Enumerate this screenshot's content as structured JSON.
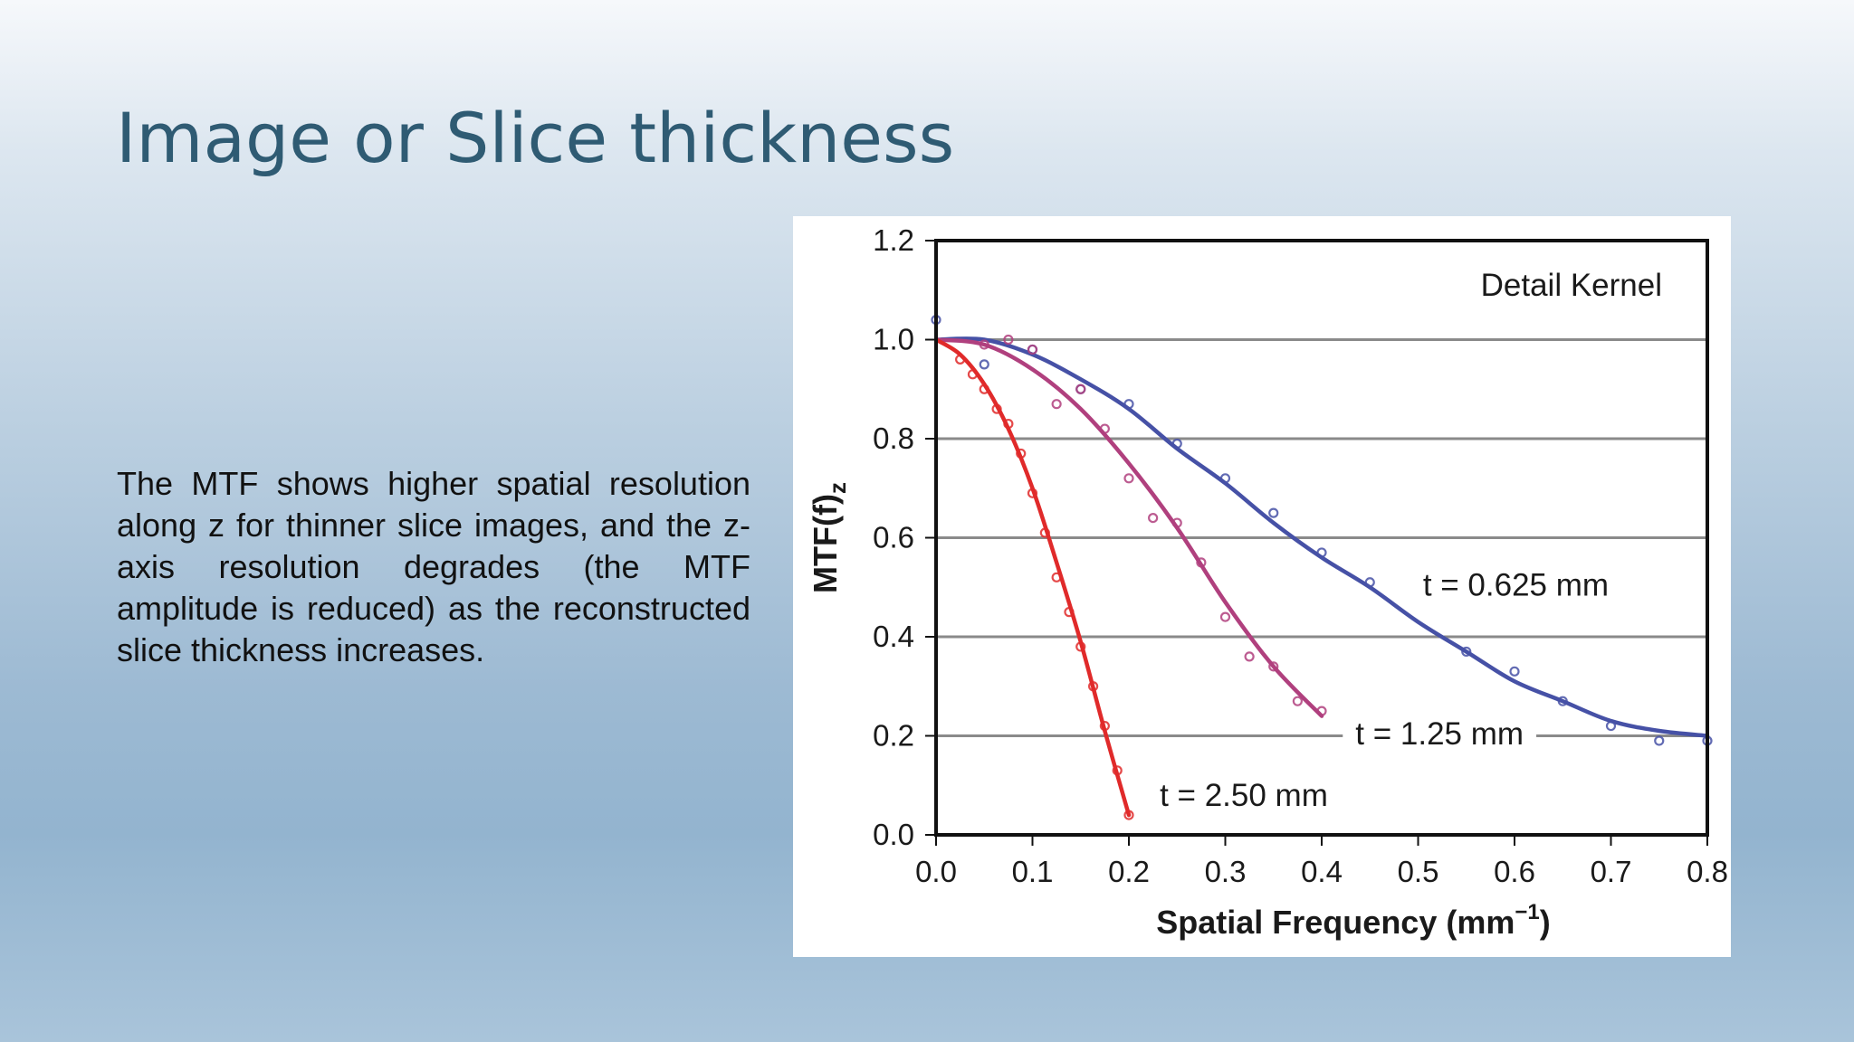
{
  "slide": {
    "title": "Image or Slice thickness",
    "body": "The MTF shows higher spatial resolution along z for thinner slice images, and the z-axis resolution degrades (the MTF amplitude is reduced) as the reconstructed slice thickness increases."
  },
  "chart_data": {
    "type": "line",
    "title": "",
    "annotation": "Detail Kernel",
    "xlabel": "Spatial Frequency (mm",
    "xlabel_sup": "−1",
    "xlabel_tail": ")",
    "ylabel": "MTF(f)",
    "ylabel_sub": "z",
    "xlim": [
      0,
      0.8
    ],
    "ylim": [
      0,
      1.2
    ],
    "x_ticks": [
      "0.0",
      "0.1",
      "0.2",
      "0.3",
      "0.4",
      "0.5",
      "0.6",
      "0.7",
      "0.8"
    ],
    "y_ticks": [
      "0.0",
      "0.2",
      "0.4",
      "0.6",
      "0.8",
      "1.0",
      "1.2"
    ],
    "grid": "horizontal",
    "series": [
      {
        "name": "t = 0.625 mm",
        "color": "#4651a6",
        "curve": [
          [
            0,
            1.0
          ],
          [
            0.05,
            1.0
          ],
          [
            0.1,
            0.97
          ],
          [
            0.15,
            0.92
          ],
          [
            0.2,
            0.86
          ],
          [
            0.25,
            0.78
          ],
          [
            0.3,
            0.71
          ],
          [
            0.35,
            0.63
          ],
          [
            0.4,
            0.56
          ],
          [
            0.45,
            0.5
          ],
          [
            0.5,
            0.43
          ],
          [
            0.55,
            0.37
          ],
          [
            0.6,
            0.31
          ],
          [
            0.65,
            0.27
          ],
          [
            0.7,
            0.23
          ],
          [
            0.75,
            0.21
          ],
          [
            0.8,
            0.2
          ]
        ],
        "points": [
          [
            0,
            1.04
          ],
          [
            0.05,
            0.95
          ],
          [
            0.1,
            0.98
          ],
          [
            0.15,
            0.9
          ],
          [
            0.2,
            0.87
          ],
          [
            0.25,
            0.79
          ],
          [
            0.3,
            0.72
          ],
          [
            0.35,
            0.65
          ],
          [
            0.4,
            0.57
          ],
          [
            0.45,
            0.51
          ],
          [
            0.55,
            0.37
          ],
          [
            0.6,
            0.33
          ],
          [
            0.65,
            0.27
          ],
          [
            0.7,
            0.22
          ],
          [
            0.75,
            0.19
          ],
          [
            0.8,
            0.19
          ]
        ]
      },
      {
        "name": "t = 1.25 mm",
        "color": "#b0407e",
        "curve": [
          [
            0,
            1.0
          ],
          [
            0.05,
            0.99
          ],
          [
            0.1,
            0.94
          ],
          [
            0.15,
            0.86
          ],
          [
            0.2,
            0.75
          ],
          [
            0.25,
            0.62
          ],
          [
            0.3,
            0.47
          ],
          [
            0.35,
            0.34
          ],
          [
            0.4,
            0.24
          ]
        ],
        "points": [
          [
            0.05,
            0.99
          ],
          [
            0.075,
            1.0
          ],
          [
            0.1,
            0.98
          ],
          [
            0.125,
            0.87
          ],
          [
            0.15,
            0.9
          ],
          [
            0.175,
            0.82
          ],
          [
            0.2,
            0.72
          ],
          [
            0.225,
            0.64
          ],
          [
            0.25,
            0.63
          ],
          [
            0.275,
            0.55
          ],
          [
            0.3,
            0.44
          ],
          [
            0.325,
            0.36
          ],
          [
            0.35,
            0.34
          ],
          [
            0.375,
            0.27
          ],
          [
            0.4,
            0.25
          ]
        ]
      },
      {
        "name": "t = 2.50 mm",
        "color": "#e02a2a",
        "curve": [
          [
            0,
            1.0
          ],
          [
            0.025,
            0.97
          ],
          [
            0.05,
            0.91
          ],
          [
            0.075,
            0.82
          ],
          [
            0.1,
            0.7
          ],
          [
            0.125,
            0.55
          ],
          [
            0.15,
            0.39
          ],
          [
            0.175,
            0.21
          ],
          [
            0.2,
            0.04
          ]
        ],
        "points": [
          [
            0.025,
            0.96
          ],
          [
            0.038,
            0.93
          ],
          [
            0.05,
            0.9
          ],
          [
            0.063,
            0.86
          ],
          [
            0.075,
            0.83
          ],
          [
            0.088,
            0.77
          ],
          [
            0.1,
            0.69
          ],
          [
            0.113,
            0.61
          ],
          [
            0.125,
            0.52
          ],
          [
            0.138,
            0.45
          ],
          [
            0.15,
            0.38
          ],
          [
            0.163,
            0.3
          ],
          [
            0.175,
            0.22
          ],
          [
            0.188,
            0.13
          ],
          [
            0.2,
            0.04
          ]
        ]
      }
    ],
    "series_labels": [
      {
        "text": "t = 0.625 mm",
        "x": 0.505,
        "y": 0.505
      },
      {
        "text": "t = 1.25 mm",
        "x": 0.435,
        "y": 0.205
      },
      {
        "text": "t = 2.50 mm",
        "x": 0.232,
        "y": 0.08
      }
    ]
  }
}
